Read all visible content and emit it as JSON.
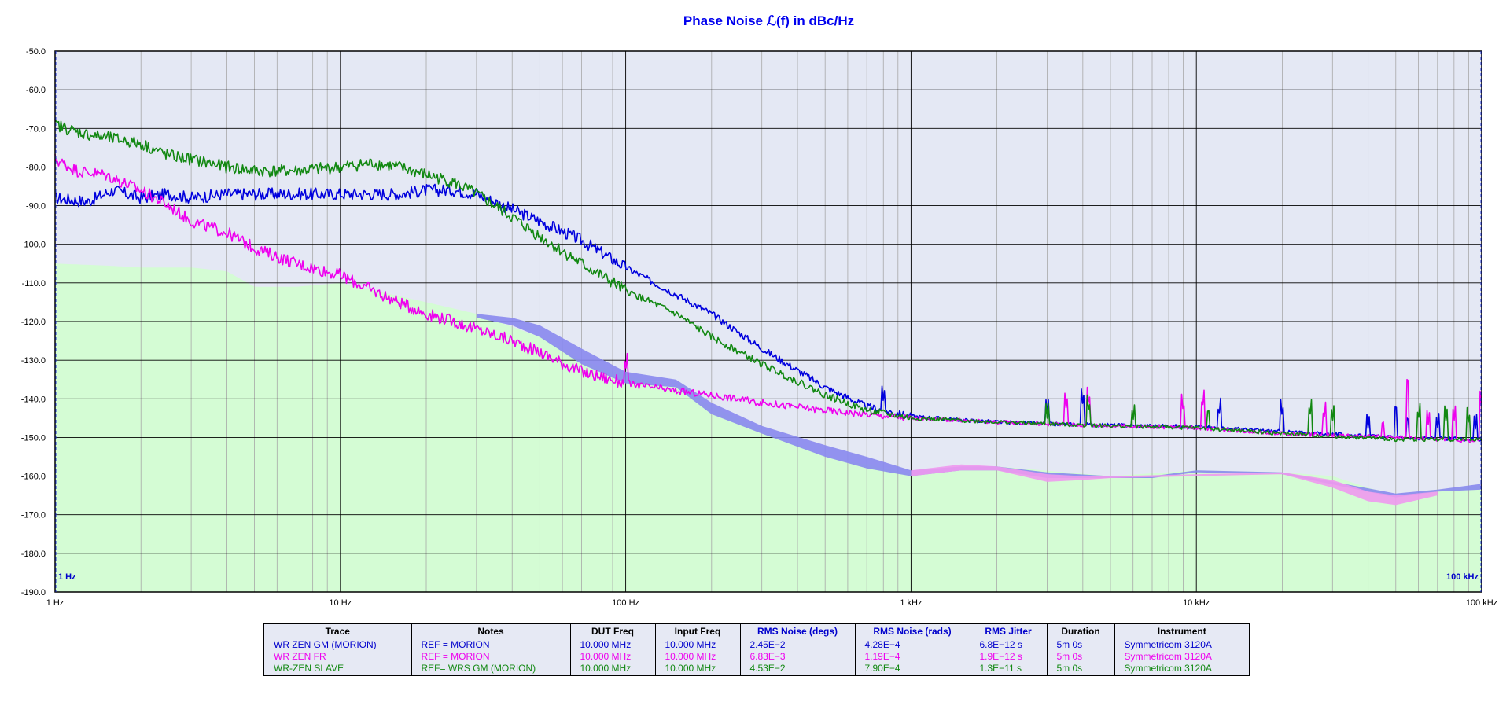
{
  "chart_data": {
    "type": "line",
    "title": "Phase Noise ℒ(f) in dBc/Hz",
    "x_scale": "log",
    "xlim": [
      1,
      100000
    ],
    "ylim": [
      -190,
      -50
    ],
    "x_ticks": [
      1,
      10,
      100,
      1000,
      10000,
      100000
    ],
    "x_tick_labels": [
      "1 Hz",
      "10 Hz",
      "100 Hz",
      "1 kHz",
      "10 kHz",
      "100 kHz"
    ],
    "y_ticks": [
      -50,
      -60,
      -70,
      -80,
      -90,
      -100,
      -110,
      -120,
      -130,
      -140,
      -150,
      -160,
      -170,
      -180,
      -190
    ],
    "y_tick_labels": [
      "-50.0",
      "-60.0",
      "-70.0",
      "-80.0",
      "-90.0",
      "-100.0",
      "-110.0",
      "-120.0",
      "-130.0",
      "-140.0",
      "-150.0",
      "-160.0",
      "-170.0",
      "-180.0",
      "-190.0"
    ],
    "grid": true,
    "corner_left_label": "1 Hz",
    "corner_right_label": "100 kHz",
    "colors": {
      "plot_bg": "#e4e8f4",
      "floor_fill": "#d4fcd4",
      "grid_minor": "#a8a8a8",
      "grid_major": "#000000",
      "band_blue": "#8888ee",
      "band_pink": "#ee99ee"
    },
    "series": [
      {
        "name": "WR ZEN GM (MORION)",
        "color": "#0000dd",
        "x": [
          1,
          1.3,
          1.6,
          2,
          2.5,
          3,
          4,
          5,
          7,
          10,
          13,
          16,
          20,
          25,
          30,
          40,
          50,
          70,
          100,
          150,
          200,
          300,
          500,
          700,
          1000,
          1500,
          2000,
          3000,
          5000,
          7000,
          10000,
          20000,
          50000,
          100000
        ],
        "y": [
          -88,
          -89,
          -86,
          -88,
          -87,
          -88,
          -87,
          -87,
          -87,
          -87,
          -87,
          -87,
          -86,
          -86,
          -87,
          -91,
          -94,
          -99,
          -106,
          -113,
          -118,
          -127,
          -137,
          -142,
          -144.5,
          -145.5,
          -146,
          -146.5,
          -146.8,
          -147,
          -147.2,
          -148.5,
          -150,
          -150.5
        ],
        "spurs": [
          [
            300,
            -132
          ],
          [
            800,
            -141
          ],
          [
            3000,
            -144
          ],
          [
            4000,
            -142
          ],
          [
            12000,
            -145
          ],
          [
            20000,
            -145
          ],
          [
            40000,
            -148
          ],
          [
            50000,
            -144
          ],
          [
            55000,
            -147
          ],
          [
            70000,
            -148
          ],
          [
            95000,
            -148
          ]
        ]
      },
      {
        "name": "WR ZEN FR",
        "color": "#ee00ee",
        "x": [
          1,
          1.2,
          1.5,
          2,
          2.5,
          3,
          4,
          5,
          7,
          10,
          13,
          16,
          20,
          25,
          30,
          40,
          50,
          70,
          100,
          150,
          200,
          300,
          500,
          700,
          1000,
          2000,
          3000,
          5000,
          10000,
          20000,
          50000,
          100000
        ],
        "y": [
          -78,
          -81,
          -82,
          -86,
          -90,
          -94,
          -97,
          -101,
          -105,
          -108,
          -112,
          -115,
          -118,
          -120,
          -122,
          -125,
          -128,
          -133,
          -136,
          -138,
          -139,
          -141,
          -143,
          -144,
          -145,
          -146,
          -146.5,
          -147,
          -147.5,
          -149,
          -150,
          -151
        ],
        "spurs": [
          [
            100,
            -133
          ],
          [
            3500,
            -143
          ],
          [
            4200,
            -142
          ],
          [
            9000,
            -144
          ],
          [
            10500,
            -143
          ],
          [
            28000,
            -146
          ],
          [
            45000,
            -148
          ],
          [
            55000,
            -137
          ],
          [
            65000,
            -147
          ],
          [
            80000,
            -146
          ],
          [
            100000,
            -143
          ]
        ]
      },
      {
        "name": "WR-ZEN SLAVE",
        "color": "#118811",
        "x": [
          1,
          1.2,
          1.4,
          1.7,
          2,
          2.5,
          3,
          4,
          5,
          7,
          10,
          13,
          16,
          20,
          25,
          30,
          40,
          50,
          70,
          100,
          150,
          200,
          300,
          500,
          700,
          1000,
          2000,
          3000,
          5000,
          10000,
          20000,
          50000,
          100000
        ],
        "y": [
          -69,
          -71,
          -72,
          -73,
          -74,
          -77,
          -78,
          -80,
          -81,
          -81,
          -80,
          -79,
          -80,
          -82,
          -84,
          -87,
          -93,
          -98,
          -105,
          -112,
          -118,
          -124,
          -131,
          -139,
          -143,
          -145,
          -146,
          -146.5,
          -147,
          -147.5,
          -149,
          -150.5,
          -150.5
        ],
        "spurs": [
          [
            200,
            -128
          ],
          [
            3000,
            -145
          ],
          [
            4200,
            -144
          ],
          [
            6000,
            -146
          ],
          [
            11000,
            -145
          ],
          [
            25000,
            -145
          ],
          [
            30000,
            -146
          ],
          [
            60000,
            -146
          ],
          [
            75000,
            -146
          ],
          [
            90000,
            -147
          ]
        ]
      }
    ],
    "noise_floor": {
      "x": [
        1,
        1.5,
        2,
        3,
        4,
        5,
        7,
        10,
        20,
        30,
        50,
        70,
        100,
        150,
        200,
        300,
        500,
        700,
        1000,
        2000,
        5000,
        10000,
        20000,
        30000,
        40000,
        50000,
        70000,
        100000
      ],
      "y": [
        -105,
        -105.5,
        -106,
        -106,
        -107,
        -111,
        -111,
        -110,
        -115,
        -118,
        -124,
        -130,
        -134,
        -137,
        -142,
        -148,
        -155,
        -157,
        -159.5,
        -157.5,
        -160,
        -158.5,
        -159,
        -160,
        -163,
        -165,
        -163.5,
        -162.5
      ]
    },
    "bands": [
      {
        "color": "band_blue",
        "x": [
          30,
          40,
          50,
          70,
          100,
          150,
          200,
          300,
          500,
          700,
          1000,
          1500,
          2000,
          3000,
          5000,
          7000,
          10000,
          20000,
          50000,
          70000,
          100000
        ],
        "upper": [
          -118,
          -119,
          -121,
          -127,
          -133,
          -135,
          -141,
          -147,
          -152,
          -155,
          -158.5,
          -157.5,
          -157.5,
          -159,
          -160,
          -160,
          -158.5,
          -159,
          -164.5,
          -163.5,
          -162
        ],
        "lower": [
          -119,
          -121,
          -124,
          -131,
          -136,
          -137,
          -144,
          -149,
          -155,
          -158,
          -160,
          -158.5,
          -158.5,
          -160.5,
          -160.5,
          -160.5,
          -159,
          -159.5,
          -165.5,
          -164,
          -163.5
        ]
      },
      {
        "color": "band_pink",
        "x": [
          1000,
          1500,
          2000,
          3000,
          4000,
          5000,
          20000,
          30000,
          40000,
          50000,
          70000
        ],
        "upper": [
          -158.5,
          -157,
          -157.5,
          -159.5,
          -160,
          -160,
          -159,
          -161,
          -164,
          -165,
          -164
        ],
        "lower": [
          -160,
          -158.5,
          -158.5,
          -161.5,
          -161,
          -160.5,
          -159.5,
          -163,
          -166.5,
          -167.5,
          -165
        ]
      }
    ]
  },
  "legend_table": {
    "headers": [
      "Trace",
      "Notes",
      "DUT Freq",
      "Input Freq",
      "RMS Noise (degs)",
      "RMS Noise (rads)",
      "RMS Jitter",
      "Duration",
      "Instrument"
    ],
    "rows": [
      {
        "color": "#0000cc",
        "cells": [
          "WR ZEN GM (MORION)",
          "REF = MORION",
          "10.000 MHz",
          "10.000 MHz",
          "2.45E−2",
          "4.28E−4",
          "6.8E−12 s",
          "5m 0s",
          "Symmetricom 3120A"
        ]
      },
      {
        "color": "#ee00ee",
        "cells": [
          "WR ZEN FR",
          "REF = MORION",
          "10.000 MHz",
          "10.000 MHz",
          "6.83E−3",
          "1.19E−4",
          "1.9E−12 s",
          "5m 0s",
          "Symmetricom 3120A"
        ]
      },
      {
        "color": "#118811",
        "cells": [
          "WR-ZEN SLAVE",
          "REF= WRS GM (MORION)",
          "10.000 MHz",
          "10.000 MHz",
          "4.53E−2",
          "7.90E−4",
          "1.3E−11 s",
          "5m 0s",
          "Symmetricom 3120A"
        ]
      }
    ]
  }
}
